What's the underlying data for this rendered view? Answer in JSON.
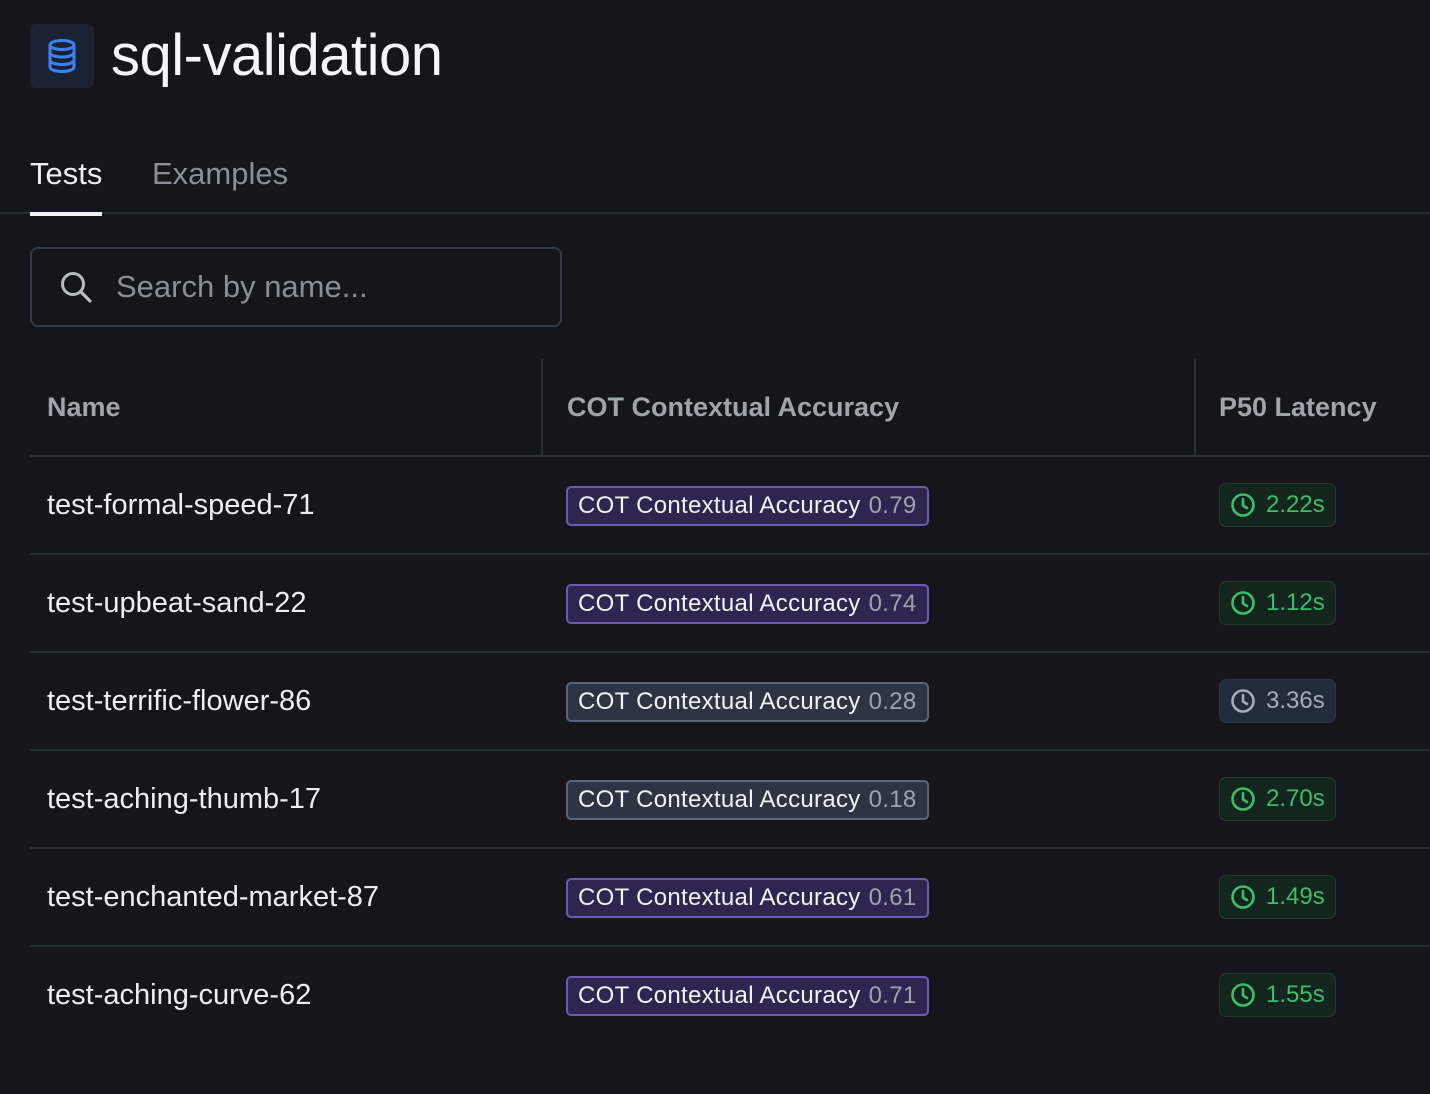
{
  "header": {
    "title": "sql-validation",
    "icon": "database-icon",
    "icon_color": "#3b82f6"
  },
  "tabs": [
    {
      "label": "Tests",
      "active": true
    },
    {
      "label": "Examples",
      "active": false
    }
  ],
  "search": {
    "placeholder": "Search by name...",
    "value": ""
  },
  "table": {
    "columns": [
      "Name",
      "COT Contextual Accuracy",
      "P50 Latency"
    ],
    "rows": [
      {
        "name": "test-formal-speed-71",
        "metric_label": "COT Contextual Accuracy",
        "metric_value": "0.79",
        "metric_style": "purple",
        "latency": "2.22s",
        "latency_style": "green"
      },
      {
        "name": "test-upbeat-sand-22",
        "metric_label": "COT Contextual Accuracy",
        "metric_value": "0.74",
        "metric_style": "purple",
        "latency": "1.12s",
        "latency_style": "green"
      },
      {
        "name": "test-terrific-flower-86",
        "metric_label": "COT Contextual Accuracy",
        "metric_value": "0.28",
        "metric_style": "gray",
        "latency": "3.36s",
        "latency_style": "gray"
      },
      {
        "name": "test-aching-thumb-17",
        "metric_label": "COT Contextual Accuracy",
        "metric_value": "0.18",
        "metric_style": "gray",
        "latency": "2.70s",
        "latency_style": "green"
      },
      {
        "name": "test-enchanted-market-87",
        "metric_label": "COT Contextual Accuracy",
        "metric_value": "0.61",
        "metric_style": "purple",
        "latency": "1.49s",
        "latency_style": "green"
      },
      {
        "name": "test-aching-curve-62",
        "metric_label": "COT Contextual Accuracy",
        "metric_value": "0.71",
        "metric_style": "purple",
        "latency": "1.55s",
        "latency_style": "green"
      }
    ]
  },
  "colors": {
    "background": "#15151b",
    "accuracy_high": "#6a5ab0",
    "accuracy_low": "#5a6478",
    "latency_good": "#3bbf6a",
    "latency_slow": "#a7acb6"
  }
}
